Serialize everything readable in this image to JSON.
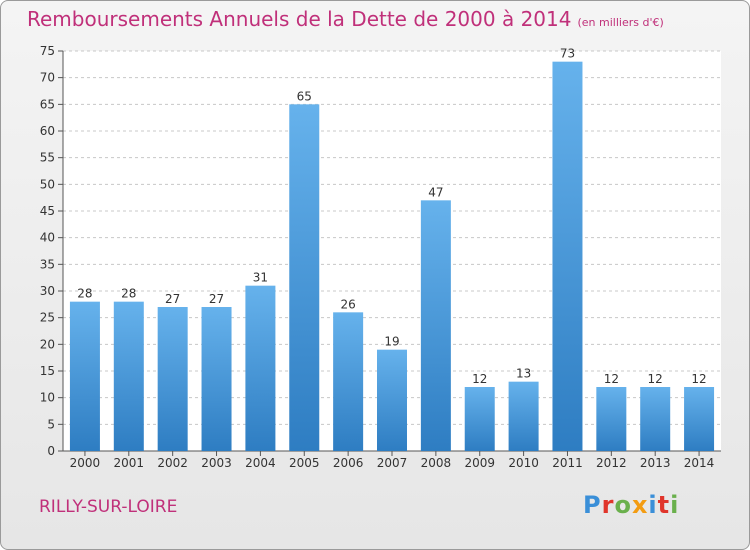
{
  "title": "Remboursements Annuels de la Dette de 2000 à 2014",
  "subtitle": "(en milliers d'€)",
  "commune": "RILLY-SUR-LOIRE",
  "logo": {
    "text": "Proxiti",
    "letters": [
      {
        "ch": "P",
        "color": "#3a8fd8"
      },
      {
        "ch": "r",
        "color": "#e0352b"
      },
      {
        "ch": "o",
        "color": "#6ab04c"
      },
      {
        "ch": "x",
        "color": "#f39c12"
      },
      {
        "ch": "i",
        "color": "#3a8fd8"
      },
      {
        "ch": "t",
        "color": "#e0352b"
      },
      {
        "ch": "i",
        "color": "#6ab04c"
      }
    ]
  },
  "colors": {
    "title": "#c0307a",
    "bar_light": "#66b2ec",
    "bar_dark": "#2e7dc2",
    "grid": "#c8c8c8",
    "axis_text": "#333333"
  },
  "chart_data": {
    "type": "bar",
    "categories": [
      "2000",
      "2001",
      "2002",
      "2003",
      "2004",
      "2005",
      "2006",
      "2007",
      "2008",
      "2009",
      "2010",
      "2011",
      "2012",
      "2013",
      "2014"
    ],
    "values": [
      28,
      28,
      27,
      27,
      31,
      65,
      26,
      19,
      47,
      12,
      13,
      73,
      12,
      12,
      12
    ],
    "ylim": [
      0,
      75
    ],
    "yticks": [
      0,
      5,
      10,
      15,
      20,
      25,
      30,
      35,
      40,
      45,
      50,
      55,
      60,
      65,
      70,
      75
    ],
    "grid": true,
    "data_labels": true
  }
}
